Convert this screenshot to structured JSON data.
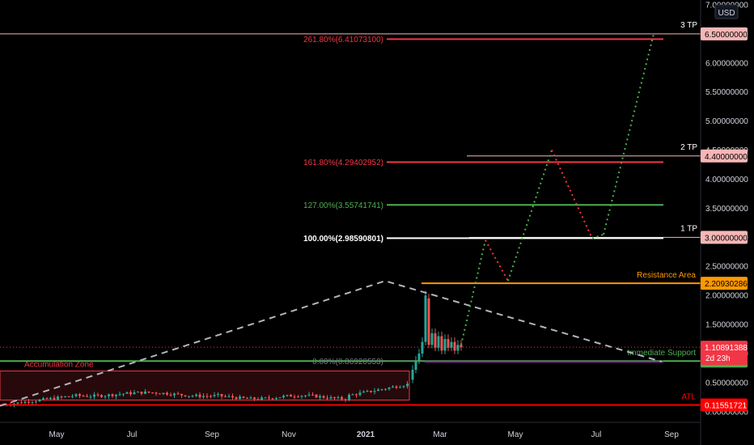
{
  "chart_data": {
    "type": "candlestick",
    "currency": "USD",
    "x_ticks": [
      "May",
      "Jul",
      "Sep",
      "Nov",
      "2021",
      "Mar",
      "May",
      "Jul",
      "Sep"
    ],
    "y_ticks": [
      "7.00000000",
      "6.50000000",
      "6.00000000",
      "5.50000000",
      "5.00000000",
      "4.50000000",
      "4.00000000",
      "3.50000000",
      "3.00000000",
      "2.50000000",
      "2.00000000",
      "1.50000000",
      "1.00000000",
      "0.50000000",
      "0.00000000"
    ],
    "ylim": [
      -0.1,
      7.0
    ],
    "fib_levels": [
      {
        "label": "261.80%(6.41073100)",
        "value": 6.410731,
        "color": "#f23645"
      },
      {
        "label": "161.80%(4.29402952)",
        "value": 4.29402952,
        "color": "#f23645"
      },
      {
        "label": "127.00%(3.55741741)",
        "value": 3.55741741,
        "color": "#4caf50"
      },
      {
        "label": "100.00%(2.98590801)",
        "value": 2.98590801,
        "color": "#ffffff"
      },
      {
        "label": "0.00%(0.86920553)",
        "value": 0.86920553,
        "color": "#787b86"
      }
    ],
    "horizontal_levels": [
      {
        "name": "3 TP",
        "value": 6.5,
        "price_label": "6.50000000",
        "color": "#f7b6b6"
      },
      {
        "name": "2 TP",
        "value": 4.4,
        "price_label": "4.40000000",
        "color": "#f7b6b6"
      },
      {
        "name": "1 TP",
        "value": 3.0,
        "price_label": "3.00000000",
        "color": "#f7b6b6"
      },
      {
        "name": "Resistance Area",
        "value": 2.20930286,
        "price_label": "2.20930286",
        "color": "#ff9800"
      },
      {
        "name": "Immediate Support",
        "value": 0.871589,
        "price_label": "0.87158900",
        "color": "#4caf50"
      },
      {
        "name": "ATL",
        "value": 0.11551721,
        "price_label": "0.11551721",
        "color": "#ff0000"
      }
    ],
    "current_price": {
      "value": 1.10891388,
      "label": "1.10891388",
      "countdown": "2d 23h",
      "color": "#f23645"
    },
    "zones": [
      {
        "name": "Accumulation Zone",
        "low": 0.2,
        "high": 0.7
      }
    ],
    "projection_path": [
      {
        "t": 570,
        "v": 1.15
      },
      {
        "t": 600,
        "v": 2.95
      },
      {
        "t": 628,
        "v": 2.25
      },
      {
        "t": 682,
        "v": 4.5
      },
      {
        "t": 732,
        "v": 2.98
      },
      {
        "t": 746,
        "v": 3.05
      },
      {
        "t": 808,
        "v": 6.5
      }
    ],
    "trend_lines": [
      {
        "points": [
          {
            "t": 0,
            "v": 0.1
          },
          {
            "t": 476,
            "v": 2.25
          },
          {
            "t": 818,
            "v": 0.86
          }
        ]
      }
    ]
  }
}
